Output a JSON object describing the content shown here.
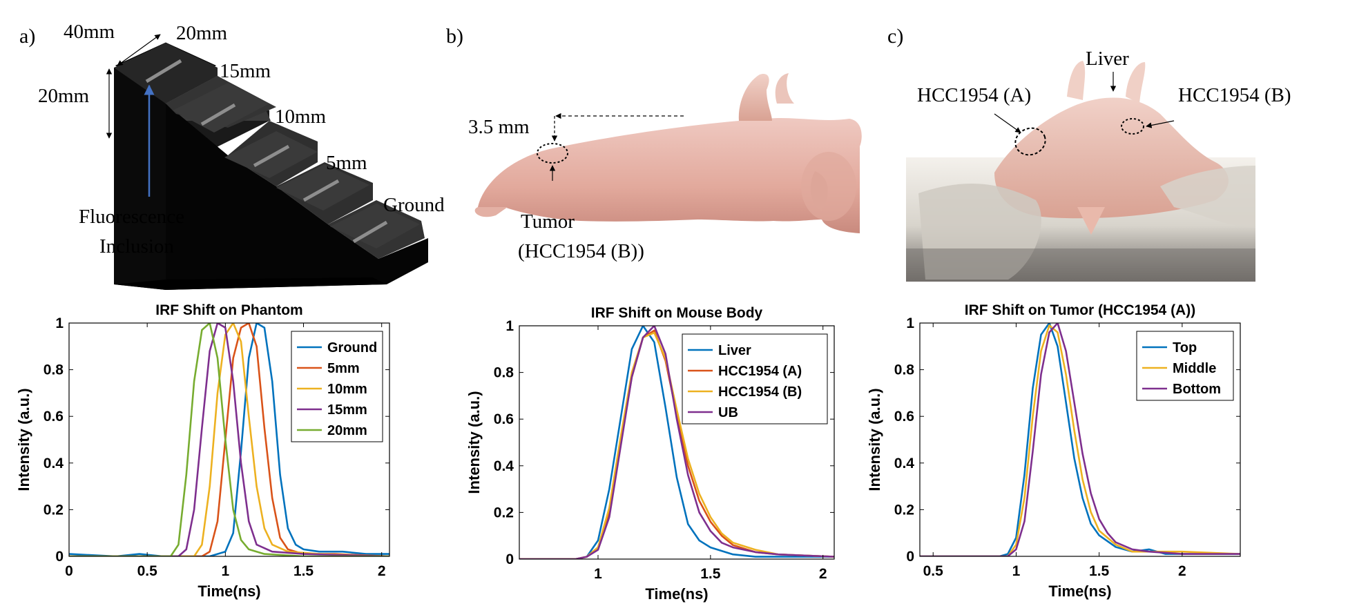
{
  "panels": {
    "a": {
      "letter": "a)",
      "labels": [
        "40mm",
        "20mm",
        "20mm",
        "15mm",
        "10mm",
        "5mm",
        "Ground"
      ],
      "inclusion_label_line1": "Fluorescence",
      "inclusion_label_line2": "Inclusion"
    },
    "b": {
      "letter": "b)",
      "distance": "3.5 mm",
      "tumor_label_line1": "Tumor",
      "tumor_label_line2": "(HCC1954 (B))"
    },
    "c": {
      "letter": "c)",
      "liver": "Liver",
      "left_tumor": "HCC1954 (A)",
      "right_tumor": "HCC1954 (B)"
    }
  },
  "colors": {
    "blue": "#0072BD",
    "orange": "#D95319",
    "yellow": "#EDB120",
    "purple": "#7E2F8E",
    "green": "#77AC30",
    "arrow": "#4472C4"
  },
  "chart_data": [
    {
      "type": "line",
      "title": "IRF Shift on Phantom",
      "xlabel": "Time(ns)",
      "ylabel": "Intensity (a.u.)",
      "xlim": [
        0,
        2.05
      ],
      "ylim": [
        0,
        1
      ],
      "xticks": [
        0,
        0.5,
        1,
        1.5,
        2
      ],
      "xticklabels": [
        "0",
        "0.5",
        "1",
        "1.5",
        "2"
      ],
      "yticks": [
        0,
        0.2,
        0.4,
        0.6,
        0.8,
        1
      ],
      "yticklabels": [
        "0",
        "0.2",
        "0.4",
        "0.6",
        "0.8",
        "1"
      ],
      "legend_position": "top-right",
      "series": [
        {
          "name": "Ground",
          "color": "#0072BD",
          "x": [
            0,
            0.3,
            0.45,
            0.6,
            0.9,
            1.0,
            1.05,
            1.1,
            1.15,
            1.2,
            1.25,
            1.3,
            1.35,
            1.4,
            1.45,
            1.5,
            1.6,
            1.75,
            1.9,
            2.05
          ],
          "y": [
            0.01,
            0.0,
            0.01,
            0.0,
            0.0,
            0.02,
            0.1,
            0.45,
            0.85,
            1.0,
            0.98,
            0.75,
            0.35,
            0.12,
            0.05,
            0.03,
            0.02,
            0.02,
            0.01,
            0.01
          ]
        },
        {
          "name": "5mm",
          "color": "#D95319",
          "x": [
            0,
            0.5,
            0.85,
            0.9,
            0.95,
            1.0,
            1.05,
            1.1,
            1.15,
            1.2,
            1.25,
            1.3,
            1.35,
            1.4,
            1.5,
            1.7,
            2.05
          ],
          "y": [
            0.0,
            0.0,
            0.0,
            0.02,
            0.15,
            0.5,
            0.85,
            0.98,
            1.0,
            0.9,
            0.55,
            0.25,
            0.08,
            0.03,
            0.01,
            0.01,
            0.0
          ]
        },
        {
          "name": "10mm",
          "color": "#EDB120",
          "x": [
            0,
            0.5,
            0.8,
            0.85,
            0.9,
            0.95,
            1.0,
            1.05,
            1.1,
            1.15,
            1.2,
            1.25,
            1.3,
            1.4,
            1.6,
            2.05
          ],
          "y": [
            0.0,
            0.0,
            0.0,
            0.05,
            0.3,
            0.7,
            0.95,
            1.0,
            0.92,
            0.6,
            0.3,
            0.12,
            0.05,
            0.02,
            0.01,
            0.0
          ]
        },
        {
          "name": "15mm",
          "color": "#7E2F8E",
          "x": [
            0,
            0.5,
            0.7,
            0.75,
            0.8,
            0.85,
            0.9,
            0.95,
            1.0,
            1.05,
            1.1,
            1.15,
            1.2,
            1.3,
            1.5,
            2.05
          ],
          "y": [
            0.0,
            0.0,
            0.0,
            0.03,
            0.2,
            0.55,
            0.88,
            1.0,
            0.98,
            0.75,
            0.4,
            0.15,
            0.05,
            0.02,
            0.01,
            0.0
          ]
        },
        {
          "name": "20mm",
          "color": "#77AC30",
          "x": [
            0,
            0.5,
            0.65,
            0.7,
            0.75,
            0.8,
            0.85,
            0.9,
            0.95,
            1.0,
            1.05,
            1.1,
            1.15,
            1.25,
            1.5,
            2.05
          ],
          "y": [
            0.0,
            0.0,
            0.0,
            0.05,
            0.35,
            0.75,
            0.97,
            1.0,
            0.85,
            0.5,
            0.2,
            0.07,
            0.03,
            0.01,
            0.0,
            0.0
          ]
        }
      ]
    },
    {
      "type": "line",
      "title": "IRF Shift on Mouse Body",
      "xlabel": "Time(ns)",
      "ylabel": "Intensity (a.u.)",
      "xlim": [
        0.65,
        2.05
      ],
      "ylim": [
        0,
        1
      ],
      "xticks": [
        1,
        1.5,
        2
      ],
      "xticklabels": [
        "1",
        "1.5",
        "2"
      ],
      "yticks": [
        0,
        0.2,
        0.4,
        0.6,
        0.8,
        1
      ],
      "yticklabels": [
        "0",
        "0.2",
        "0.4",
        "0.6",
        "0.8",
        "1"
      ],
      "legend_position": "top-right",
      "series": [
        {
          "name": "Liver",
          "color": "#0072BD",
          "x": [
            0.65,
            0.9,
            0.95,
            1.0,
            1.05,
            1.1,
            1.15,
            1.2,
            1.25,
            1.3,
            1.35,
            1.4,
            1.45,
            1.5,
            1.6,
            1.7,
            1.8,
            2.05
          ],
          "y": [
            0.0,
            0.0,
            0.01,
            0.08,
            0.3,
            0.6,
            0.9,
            1.0,
            0.93,
            0.65,
            0.35,
            0.15,
            0.08,
            0.05,
            0.02,
            0.01,
            0.01,
            0.01
          ]
        },
        {
          "name": "HCC1954 (A)",
          "color": "#D95319",
          "x": [
            0.65,
            0.9,
            0.95,
            1.0,
            1.05,
            1.1,
            1.15,
            1.2,
            1.25,
            1.3,
            1.35,
            1.4,
            1.45,
            1.5,
            1.55,
            1.6,
            1.7,
            1.8,
            2.05
          ],
          "y": [
            0.0,
            0.0,
            0.01,
            0.05,
            0.2,
            0.5,
            0.78,
            0.95,
            0.98,
            0.85,
            0.62,
            0.4,
            0.25,
            0.16,
            0.1,
            0.06,
            0.03,
            0.02,
            0.01
          ]
        },
        {
          "name": "HCC1954 (B)",
          "color": "#EDB120",
          "x": [
            0.65,
            0.9,
            0.95,
            1.0,
            1.05,
            1.1,
            1.15,
            1.2,
            1.25,
            1.3,
            1.35,
            1.4,
            1.45,
            1.5,
            1.55,
            1.6,
            1.7,
            1.8,
            2.05
          ],
          "y": [
            0.0,
            0.0,
            0.01,
            0.05,
            0.22,
            0.52,
            0.8,
            0.95,
            0.97,
            0.86,
            0.64,
            0.43,
            0.28,
            0.18,
            0.11,
            0.07,
            0.04,
            0.02,
            0.01
          ]
        },
        {
          "name": "UB",
          "color": "#7E2F8E",
          "x": [
            0.65,
            0.9,
            0.95,
            1.0,
            1.05,
            1.1,
            1.15,
            1.2,
            1.25,
            1.3,
            1.35,
            1.4,
            1.45,
            1.5,
            1.55,
            1.6,
            1.7,
            1.8,
            2.05
          ],
          "y": [
            0.0,
            0.0,
            0.01,
            0.04,
            0.18,
            0.48,
            0.78,
            0.95,
            1.0,
            0.88,
            0.6,
            0.36,
            0.2,
            0.12,
            0.07,
            0.05,
            0.03,
            0.02,
            0.01
          ]
        }
      ]
    },
    {
      "type": "line",
      "title": "IRF Shift on Tumor (HCC1954 (A))",
      "xlabel": "Time(ns)",
      "ylabel": "Intensity (a.u.)",
      "xlim": [
        0.42,
        2.35
      ],
      "ylim": [
        0,
        1
      ],
      "xticks": [
        0.5,
        1,
        1.5,
        2
      ],
      "xticklabels": [
        "0.5",
        "1",
        "1.5",
        "2"
      ],
      "yticks": [
        0,
        0.2,
        0.4,
        0.6,
        0.8,
        1
      ],
      "yticklabels": [
        "0",
        "0.2",
        "0.4",
        "0.6",
        "0.8",
        "1"
      ],
      "legend_position": "top-right",
      "series": [
        {
          "name": "Top",
          "color": "#0072BD",
          "x": [
            0.42,
            0.6,
            0.9,
            0.95,
            1.0,
            1.05,
            1.1,
            1.15,
            1.2,
            1.25,
            1.3,
            1.35,
            1.4,
            1.45,
            1.5,
            1.6,
            1.7,
            1.8,
            1.9,
            2.35
          ],
          "y": [
            0.0,
            0.0,
            0.0,
            0.01,
            0.08,
            0.35,
            0.72,
            0.95,
            1.0,
            0.9,
            0.66,
            0.42,
            0.25,
            0.14,
            0.09,
            0.04,
            0.02,
            0.03,
            0.01,
            0.01
          ]
        },
        {
          "name": "Middle",
          "color": "#EDB120",
          "x": [
            0.42,
            0.6,
            0.95,
            1.0,
            1.05,
            1.1,
            1.15,
            1.2,
            1.25,
            1.3,
            1.35,
            1.4,
            1.45,
            1.5,
            1.6,
            1.7,
            1.8,
            2.0,
            2.35
          ],
          "y": [
            0.0,
            0.0,
            0.0,
            0.05,
            0.25,
            0.6,
            0.88,
            0.99,
            0.96,
            0.78,
            0.54,
            0.33,
            0.19,
            0.11,
            0.05,
            0.02,
            0.02,
            0.02,
            0.01
          ]
        },
        {
          "name": "Bottom",
          "color": "#7E2F8E",
          "x": [
            0.42,
            0.6,
            0.95,
            1.0,
            1.05,
            1.1,
            1.15,
            1.2,
            1.25,
            1.3,
            1.35,
            1.4,
            1.45,
            1.5,
            1.55,
            1.6,
            1.7,
            1.8,
            2.0,
            2.35
          ],
          "y": [
            0.0,
            0.0,
            0.0,
            0.03,
            0.15,
            0.45,
            0.78,
            0.96,
            1.0,
            0.88,
            0.66,
            0.44,
            0.27,
            0.16,
            0.1,
            0.06,
            0.03,
            0.02,
            0.01,
            0.01
          ]
        }
      ]
    }
  ]
}
